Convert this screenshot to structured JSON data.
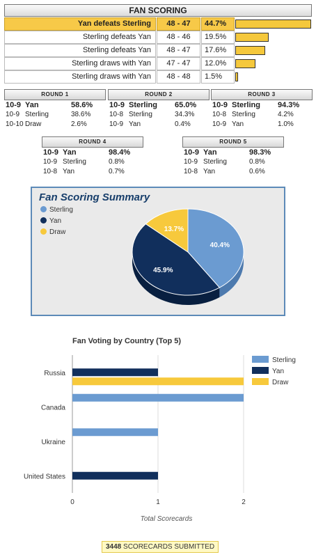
{
  "fan_scoring": {
    "title": "FAN SCORING",
    "rows": [
      {
        "outcome": "Yan defeats Sterling",
        "score": "48 - 47",
        "pct_label": "44.7%",
        "pct": 44.7,
        "winner": true
      },
      {
        "outcome": "Sterling defeats Yan",
        "score": "48 - 46",
        "pct_label": "19.5%",
        "pct": 19.5,
        "winner": false
      },
      {
        "outcome": "Sterling defeats Yan",
        "score": "48 - 47",
        "pct_label": "17.6%",
        "pct": 17.6,
        "winner": false
      },
      {
        "outcome": "Sterling draws with Yan",
        "score": "47 - 47",
        "pct_label": "12.0%",
        "pct": 12.0,
        "winner": false
      },
      {
        "outcome": "Sterling draws with Yan",
        "score": "48 - 48",
        "pct_label": "1.5%",
        "pct": 1.5,
        "winner": false
      }
    ]
  },
  "rounds": [
    {
      "title": "ROUND 1",
      "rows": [
        [
          "10-9",
          "Yan",
          "58.6%"
        ],
        [
          "10-9",
          "Sterling",
          "38.6%"
        ],
        [
          "10-10",
          "Draw",
          "2.6%"
        ]
      ]
    },
    {
      "title": "ROUND 2",
      "rows": [
        [
          "10-9",
          "Sterling",
          "65.0%"
        ],
        [
          "10-8",
          "Sterling",
          "34.3%"
        ],
        [
          "10-9",
          "Yan",
          "0.4%"
        ]
      ]
    },
    {
      "title": "ROUND 3",
      "rows": [
        [
          "10-9",
          "Sterling",
          "94.3%"
        ],
        [
          "10-8",
          "Sterling",
          "4.2%"
        ],
        [
          "10-9",
          "Yan",
          "1.0%"
        ]
      ]
    },
    {
      "title": "ROUND 4",
      "rows": [
        [
          "10-9",
          "Yan",
          "98.4%"
        ],
        [
          "10-9",
          "Sterling",
          "0.8%"
        ],
        [
          "10-8",
          "Yan",
          "0.7%"
        ]
      ]
    },
    {
      "title": "ROUND 5",
      "rows": [
        [
          "10-9",
          "Yan",
          "98.3%"
        ],
        [
          "10-9",
          "Sterling",
          "0.8%"
        ],
        [
          "10-8",
          "Yan",
          "0.6%"
        ]
      ]
    }
  ],
  "chart_data": [
    {
      "type": "pie",
      "title": "Fan Scoring Summary",
      "labels": [
        "Sterling",
        "Yan",
        "Draw"
      ],
      "values": [
        40.4,
        45.9,
        13.7
      ],
      "value_labels": [
        "40.4%",
        "45.9%",
        "13.7%"
      ],
      "colors": [
        "#6b9bd1",
        "#112f5c",
        "#f7c93c"
      ],
      "legend_position": "top-left"
    },
    {
      "type": "bar",
      "orientation": "horizontal",
      "title": "Fan Voting by Country (Top 5)",
      "categories": [
        "Russia",
        "Canada",
        "Ukraine",
        "United States"
      ],
      "series": [
        {
          "name": "Sterling",
          "color": "#6b9bd1",
          "values": [
            0,
            2,
            1,
            0
          ]
        },
        {
          "name": "Yan",
          "color": "#112f5c",
          "values": [
            1,
            0,
            0,
            1
          ]
        },
        {
          "name": "Draw",
          "color": "#f7c93c",
          "values": [
            2,
            0,
            0,
            0
          ]
        }
      ],
      "xlabel": "Total Scorecards",
      "xlim": [
        0,
        2
      ],
      "xticks": [
        "0",
        "1",
        "2"
      ],
      "grid": true,
      "legend_position": "right"
    }
  ],
  "footer": {
    "count": "3448",
    "label": "SCORECARDS SUBMITTED"
  }
}
